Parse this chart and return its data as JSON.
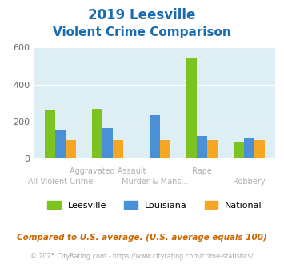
{
  "title_line1": "2019 Leesville",
  "title_line2": "Violent Crime Comparison",
  "categories": [
    "All Violent Crime",
    "Aggravated Assault",
    "Murder & Mans...",
    "Rape",
    "Robbery"
  ],
  "leesville": [
    260,
    270,
    0,
    545,
    85
  ],
  "louisiana": [
    150,
    165,
    232,
    120,
    110
  ],
  "national": [
    100,
    100,
    100,
    100,
    100
  ],
  "colors": {
    "leesville": "#7dc31f",
    "louisiana": "#4a90d9",
    "national": "#f5a623"
  },
  "ylim": [
    0,
    600
  ],
  "yticks": [
    0,
    200,
    400,
    600
  ],
  "plot_bg": "#ddeef4",
  "title_color": "#1a6cb0",
  "footer_text": "Compared to U.S. average. (U.S. average equals 100)",
  "credit_text": "© 2025 CityRating.com - https://www.cityrating.com/crime-statistics/",
  "legend": [
    "Leesville",
    "Louisiana",
    "National"
  ]
}
